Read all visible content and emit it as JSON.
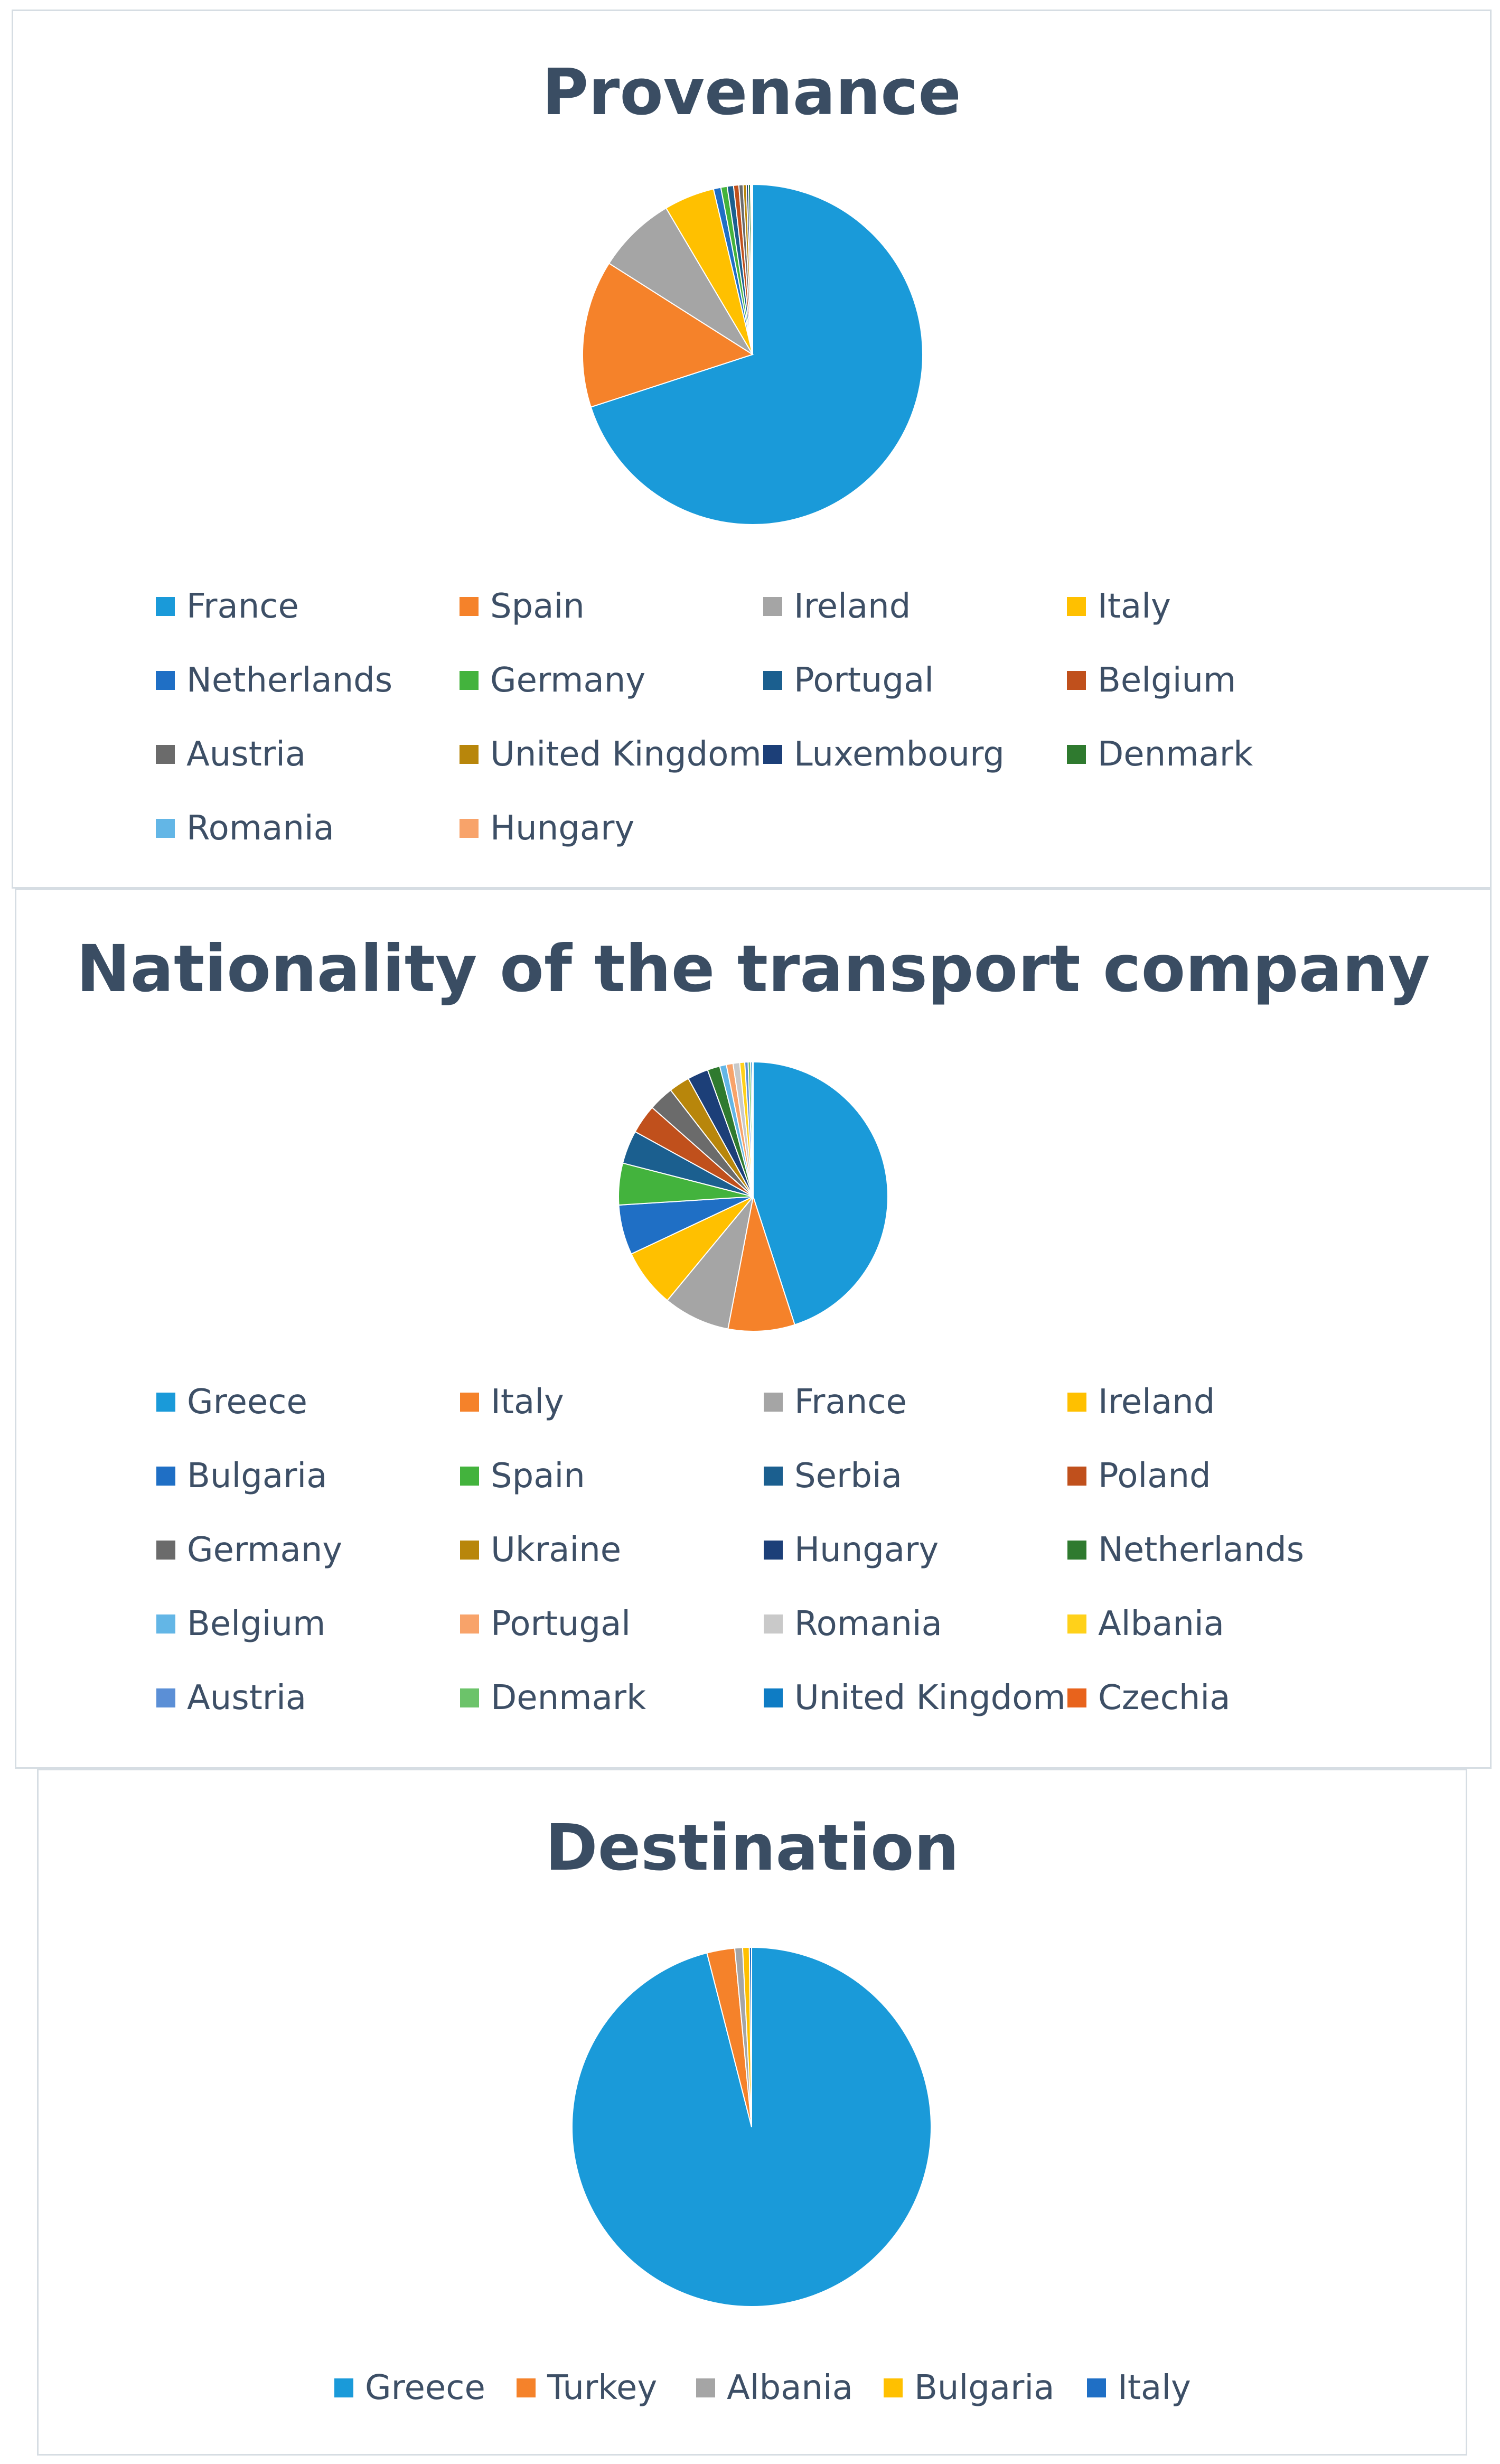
{
  "chart_data": [
    {
      "type": "pie",
      "title": "Provenance",
      "legend_position": "bottom",
      "categories": [
        "France",
        "Spain",
        "Ireland",
        "Italy",
        "Netherlands",
        "Germany",
        "Portugal",
        "Belgium",
        "Austria",
        "United Kingdom",
        "Luxembourg",
        "Denmark",
        "Romania",
        "Hungary"
      ],
      "values": [
        70.0,
        14.0,
        7.5,
        4.8,
        0.7,
        0.6,
        0.6,
        0.5,
        0.4,
        0.3,
        0.2,
        0.2,
        0.1,
        0.1
      ],
      "colors": [
        "#1a9ad9",
        "#f5822a",
        "#a5a5a5",
        "#ffc000",
        "#1f6fc5",
        "#43b33d",
        "#1b5f8f",
        "#c0501c",
        "#6b6b6b",
        "#b8860b",
        "#1c3f78",
        "#2f7a2f",
        "#63b6e6",
        "#f8a36a"
      ]
    },
    {
      "type": "pie",
      "title": "Nationality of the transport company",
      "legend_position": "bottom",
      "categories": [
        "Greece",
        "Italy",
        "France",
        "Ireland",
        "Bulgaria",
        "Spain",
        "Serbia",
        "Poland",
        "Germany",
        "Ukraine",
        "Hungary",
        "Netherlands",
        "Belgium",
        "Portugal",
        "Romania",
        "Albania",
        "Austria",
        "Denmark",
        "United Kingdom",
        "Czechia"
      ],
      "values": [
        45.0,
        8.0,
        8.0,
        7.0,
        6.0,
        5.0,
        4.0,
        3.5,
        3.0,
        2.5,
        2.5,
        1.5,
        0.8,
        0.8,
        0.8,
        0.6,
        0.4,
        0.3,
        0.2,
        0.1
      ],
      "colors": [
        "#1a9ad9",
        "#f5822a",
        "#a5a5a5",
        "#ffc000",
        "#1f6fc5",
        "#43b33d",
        "#1b5f8f",
        "#c0501c",
        "#6b6b6b",
        "#b8860b",
        "#1c3f78",
        "#2f7a2f",
        "#63b6e6",
        "#f8a36a",
        "#c9c9c9",
        "#ffd11a",
        "#5b8fd6",
        "#6cc36a",
        "#0e7cc4",
        "#e8631c"
      ]
    },
    {
      "type": "pie",
      "title": "Destination",
      "legend_position": "bottom",
      "categories": [
        "Greece",
        "Turkey",
        "Albania",
        "Bulgaria",
        "Italy"
      ],
      "values": [
        96.0,
        2.5,
        0.7,
        0.6,
        0.2
      ],
      "colors": [
        "#1a9ad9",
        "#f5822a",
        "#a5a5a5",
        "#ffc000",
        "#1f6fc5"
      ]
    }
  ]
}
